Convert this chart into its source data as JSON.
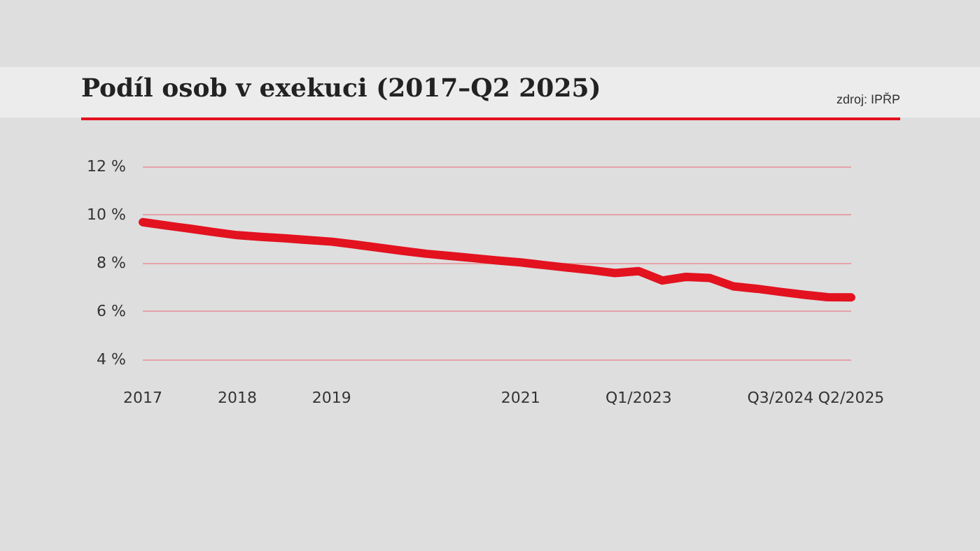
{
  "chart_data": {
    "type": "line",
    "title": "Podíl osob v exekuci (2017–Q2 2025)",
    "annotations": [
      "zdroj: IPŘP"
    ],
    "categories": [
      "2017",
      null,
      null,
      null,
      "2018",
      null,
      null,
      null,
      "2019",
      null,
      null,
      null,
      null,
      null,
      null,
      null,
      "2021",
      null,
      null,
      null,
      null,
      "Q1/2023",
      null,
      null,
      null,
      null,
      null,
      "Q3/2024",
      null,
      null,
      "Q2/2025"
    ],
    "series": [
      {
        "color": "#e3121f",
        "values": [
          9.69,
          9.55,
          9.42,
          9.28,
          9.15,
          9.08,
          9.02,
          8.95,
          8.88,
          8.76,
          8.63,
          8.5,
          8.38,
          8.29,
          8.2,
          8.1,
          8.02,
          7.91,
          7.8,
          7.7,
          7.58,
          7.66,
          7.27,
          7.42,
          7.38,
          7.03,
          6.93,
          6.8,
          6.68,
          6.58,
          6.57
        ]
      }
    ],
    "ylim": [
      4,
      12
    ],
    "yticks": [
      {
        "value": 4,
        "label": "4 %"
      },
      {
        "value": 6,
        "label": "6 %"
      },
      {
        "value": 8,
        "label": "8 %"
      },
      {
        "value": 10,
        "label": "10 %"
      },
      {
        "value": 12,
        "label": "12 %"
      }
    ],
    "grid": "y",
    "marker": "none",
    "line_style": "solid"
  }
}
